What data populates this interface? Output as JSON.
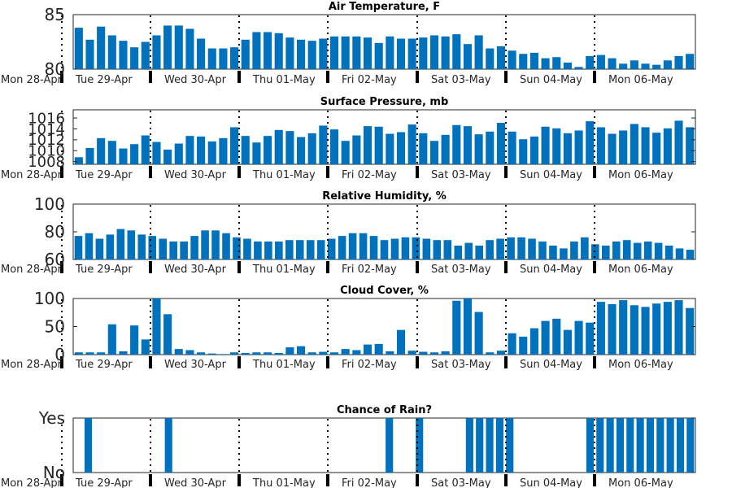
{
  "figure": {
    "day_labels": [
      "Mon 28-Apr",
      "Tue 29-Apr",
      "Wed 30-Apr",
      "Thu 01-May",
      "Fri 02-May",
      "Sat 03-May",
      "Sun 04-May",
      "Mon 06-May"
    ]
  },
  "chart_data": [
    {
      "type": "bar",
      "title": "Air Temperature, F",
      "ylim": [
        80,
        85
      ],
      "yticks": [
        80,
        85
      ],
      "ytick_labels": [
        "80",
        "85"
      ],
      "values": [
        83.8,
        82.7,
        83.9,
        83.1,
        82.6,
        82.0,
        82.5,
        83.1,
        84.0,
        84.0,
        83.7,
        82.8,
        81.9,
        81.9,
        82.0,
        82.7,
        83.4,
        83.4,
        83.3,
        82.9,
        82.7,
        82.6,
        82.8,
        83.0,
        83.0,
        83.0,
        82.9,
        82.4,
        83.0,
        82.8,
        82.8,
        82.9,
        83.1,
        83.0,
        83.2,
        82.3,
        83.1,
        81.9,
        82.1,
        81.7,
        81.4,
        81.5,
        81.0,
        81.1,
        80.6,
        80.2,
        81.2,
        81.3,
        81.0,
        80.5,
        80.8,
        80.5,
        80.4,
        80.8,
        81.2,
        81.4
      ],
      "color": "#0072BD"
    },
    {
      "type": "bar",
      "title": "Surface Pressure, mb",
      "ylim": [
        1007.5,
        1017.5
      ],
      "yticks": [
        1008,
        1010,
        1012,
        1014,
        1016
      ],
      "ytick_labels": [
        "1008",
        "1010",
        "1012",
        "1014",
        "1016"
      ],
      "values": [
        1008.8,
        1010.5,
        1012.3,
        1011.8,
        1010.4,
        1011.2,
        1012.8,
        1011.6,
        1010.2,
        1011.3,
        1012.7,
        1012.6,
        1011.7,
        1012.3,
        1014.3,
        1012.7,
        1011.5,
        1012.7,
        1013.8,
        1013.6,
        1012.5,
        1013.2,
        1014.6,
        1013.9,
        1011.8,
        1012.8,
        1014.5,
        1014.4,
        1013.1,
        1013.4,
        1014.8,
        1013.2,
        1011.8,
        1012.9,
        1014.7,
        1014.5,
        1013.0,
        1013.5,
        1015.1,
        1013.5,
        1012.1,
        1012.6,
        1014.4,
        1014.1,
        1013.2,
        1013.7,
        1015.4,
        1014.3,
        1013.1,
        1013.7,
        1014.9,
        1014.3,
        1013.3,
        1014.1,
        1015.5,
        1014.3
      ],
      "color": "#0072BD"
    },
    {
      "type": "bar",
      "title": "Relative Humidity, %",
      "ylim": [
        60,
        100
      ],
      "yticks": [
        60,
        80,
        100
      ],
      "ytick_labels": [
        "60",
        "80",
        "100"
      ],
      "values": [
        77,
        79,
        75,
        78,
        82,
        81,
        78,
        77,
        75,
        73,
        73,
        77,
        81,
        81,
        79,
        76,
        75,
        73,
        73,
        73,
        74,
        74,
        74,
        74,
        75,
        77,
        79,
        79,
        77,
        74,
        75,
        76,
        76,
        75,
        74,
        74,
        70,
        72,
        70,
        74,
        75,
        76,
        76,
        75,
        73,
        70,
        68,
        73,
        76,
        71,
        70,
        73,
        74,
        72,
        73,
        72,
        70,
        68,
        67
      ],
      "color": "#0072BD"
    },
    {
      "type": "bar",
      "title": "Cloud Cover, %",
      "ylim": [
        0,
        100
      ],
      "yticks": [
        0,
        50,
        100
      ],
      "ytick_labels": [
        "0",
        "50",
        "100"
      ],
      "values": [
        4,
        4,
        4,
        54,
        6,
        52,
        27,
        100,
        72,
        10,
        8,
        4,
        2,
        1,
        4,
        3,
        4,
        4,
        3,
        13,
        15,
        4,
        5,
        4,
        10,
        8,
        18,
        19,
        6,
        44,
        7,
        5,
        4,
        6,
        96,
        100,
        76,
        4,
        7,
        38,
        32,
        47,
        60,
        64,
        44,
        60,
        57,
        94,
        90,
        97,
        88,
        85,
        91,
        94,
        97,
        83
      ],
      "color": "#0072BD"
    },
    {
      "type": "bar",
      "title": "Chance of Rain?",
      "ylim": [
        0,
        1
      ],
      "yticks": [
        0,
        1
      ],
      "ytick_labels": [
        "No",
        "Yes"
      ],
      "values": [
        0,
        1,
        0,
        0,
        0,
        0,
        0,
        0,
        0,
        1,
        0,
        0,
        0,
        0,
        0,
        0,
        0,
        0,
        0,
        0,
        0,
        0,
        0,
        0,
        0,
        0,
        0,
        0,
        0,
        0,
        0,
        1,
        0,
        0,
        1,
        0,
        0,
        0,
        0,
        1,
        1,
        1,
        1,
        1,
        0,
        0,
        0,
        0,
        0,
        0,
        0,
        1,
        1,
        1,
        1,
        1,
        1,
        1,
        1,
        1,
        1,
        1
      ],
      "color": "#0072BD"
    }
  ]
}
